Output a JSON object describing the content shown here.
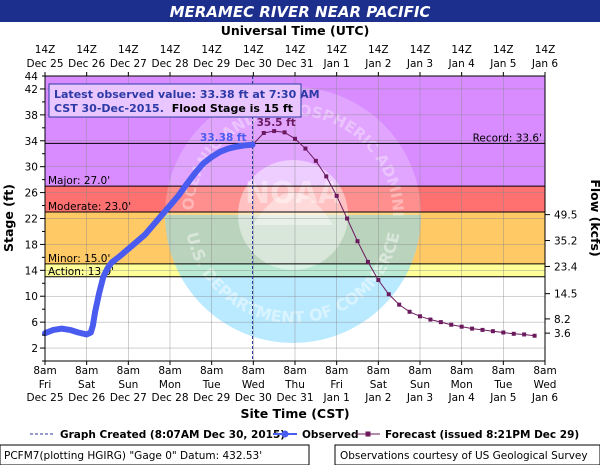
{
  "chart_data": {
    "type": "line",
    "title": "MERAMEC RIVER NEAR PACIFIC",
    "top_axis_title": "Universal Time (UTC)",
    "bottom_axis_title": "Site Time (CST)",
    "ylabel": "Stage (ft)",
    "y2label": "Flow (kcfs)",
    "ylim": [
      0,
      44
    ],
    "xlim_days": [
      "Dec 25",
      "Jan 6"
    ],
    "grid": true,
    "yticks": [
      2,
      6,
      10,
      14,
      18,
      22,
      26,
      30,
      34,
      38,
      42
    ],
    "yticks_minor": [
      0,
      4,
      8,
      12,
      16,
      20,
      24,
      28,
      32,
      36,
      40,
      44
    ],
    "flow_ticks": [
      {
        "stage": 4.3,
        "label": "3.6"
      },
      {
        "stage": 6.5,
        "label": "8.2"
      },
      {
        "stage": 10.4,
        "label": "14.5"
      },
      {
        "stage": 14.6,
        "label": "23.4"
      },
      {
        "stage": 18.6,
        "label": "35.2"
      },
      {
        "stage": 22.6,
        "label": "49.5"
      }
    ],
    "top_ticks": [
      {
        "h": "14Z",
        "d": "Dec 25"
      },
      {
        "h": "14Z",
        "d": "Dec 26"
      },
      {
        "h": "14Z",
        "d": "Dec 27"
      },
      {
        "h": "14Z",
        "d": "Dec 28"
      },
      {
        "h": "14Z",
        "d": "Dec 29"
      },
      {
        "h": "14Z",
        "d": "Dec 30"
      },
      {
        "h": "14Z",
        "d": "Dec 31"
      },
      {
        "h": "14Z",
        "d": "Jan 1"
      },
      {
        "h": "14Z",
        "d": "Jan 2"
      },
      {
        "h": "14Z",
        "d": "Jan 3"
      },
      {
        "h": "14Z",
        "d": "Jan 4"
      },
      {
        "h": "14Z",
        "d": "Jan 5"
      },
      {
        "h": "14Z",
        "d": "Jan 6"
      }
    ],
    "bottom_ticks": [
      {
        "t": "8am",
        "w": "Fri",
        "d": "Dec 25"
      },
      {
        "t": "8am",
        "w": "Sat",
        "d": "Dec 26"
      },
      {
        "t": "8am",
        "w": "Sun",
        "d": "Dec 27"
      },
      {
        "t": "8am",
        "w": "Mon",
        "d": "Dec 28"
      },
      {
        "t": "8am",
        "w": "Tue",
        "d": "Dec 29"
      },
      {
        "t": "8am",
        "w": "Wed",
        "d": "Dec 30"
      },
      {
        "t": "8am",
        "w": "Thu",
        "d": "Dec 31"
      },
      {
        "t": "8am",
        "w": "Fri",
        "d": "Jan 1"
      },
      {
        "t": "8am",
        "w": "Sat",
        "d": "Jan 2"
      },
      {
        "t": "8am",
        "w": "Sun",
        "d": "Jan 3"
      },
      {
        "t": "8am",
        "w": "Mon",
        "d": "Jan 4"
      },
      {
        "t": "8am",
        "w": "Tue",
        "d": "Jan 5"
      },
      {
        "t": "8am",
        "w": "Wed",
        "d": "Jan 6"
      }
    ],
    "bands": [
      {
        "name": "Action",
        "from": 13.0,
        "to": 15.0,
        "color": "#ffff99"
      },
      {
        "name": "Minor",
        "from": 15.0,
        "to": 23.0,
        "color": "#ffc966"
      },
      {
        "name": "Moderate",
        "from": 23.0,
        "to": 27.0,
        "color": "#ff7070"
      },
      {
        "name": "Major",
        "from": 27.0,
        "to": 44.0,
        "color": "#d98cff"
      }
    ],
    "thresholds": [
      {
        "label": "Action: 13.0'",
        "value": 13.0
      },
      {
        "label": "Minor: 15.0'",
        "value": 15.0
      },
      {
        "label": "Moderate: 23.0'",
        "value": 23.0
      },
      {
        "label": "Major: 27.0'",
        "value": 27.0
      },
      {
        "label": "Record: 33.6'",
        "value": 33.6
      }
    ],
    "observed": {
      "name": "Observed",
      "color": "#4a5cf0",
      "x": [
        0,
        0.2,
        0.4,
        0.6,
        0.8,
        1.0,
        1.1,
        1.15,
        1.2,
        1.3,
        1.4,
        1.5,
        1.6,
        1.8,
        2.0,
        2.2,
        2.4,
        2.6,
        2.8,
        3.0,
        3.2,
        3.4,
        3.6,
        3.8,
        4.0,
        4.2,
        4.4,
        4.6,
        4.8,
        4.98
      ],
      "values": [
        4.3,
        4.8,
        5.0,
        4.8,
        4.4,
        4.1,
        4.4,
        5.5,
        7.5,
        10.5,
        13.0,
        14.3,
        15.2,
        16.2,
        17.3,
        18.4,
        19.5,
        21.0,
        22.5,
        24.0,
        25.5,
        27.3,
        29.0,
        30.5,
        31.5,
        32.3,
        32.8,
        33.1,
        33.3,
        33.38
      ]
    },
    "forecast": {
      "name": "Forecast",
      "color": "#6b1a5e",
      "x": [
        4.98,
        5.25,
        5.5,
        5.75,
        6.0,
        6.25,
        6.5,
        6.75,
        7.0,
        7.25,
        7.5,
        7.75,
        8.0,
        8.25,
        8.5,
        8.75,
        9.0,
        9.25,
        9.5,
        9.75,
        10.0,
        10.25,
        10.5,
        10.75,
        11.0,
        11.25,
        11.5,
        11.75
      ],
      "values": [
        33.38,
        35.2,
        35.5,
        35.3,
        34.3,
        32.8,
        30.9,
        28.5,
        25.5,
        22.0,
        18.5,
        15.3,
        12.5,
        10.3,
        8.7,
        7.6,
        6.9,
        6.4,
        6.0,
        5.6,
        5.3,
        5.0,
        4.8,
        4.6,
        4.4,
        4.2,
        4.1,
        3.9
      ]
    },
    "graph_created_x": 4.98,
    "observed_label": "33.38 ft",
    "peak_label": "35.5 ft",
    "info_box": {
      "line1": "Latest observed value: 33.38 ft at 7:30 AM",
      "line2a": "CST 30-Dec-2015.",
      "line2b": "Flood Stage is 15 ft"
    },
    "legend": {
      "graph_created": "Graph Created (8:07AM Dec 30, 2015)",
      "observed": "Observed",
      "forecast": "Forecast (issued 8:21PM Dec 29)"
    },
    "footer": {
      "left": "PCFM7(plotting HGIRG) \"Gage 0\" Datum: 432.53'",
      "right": "Observations courtesy of US Geological Survey"
    },
    "watermark_text": "NATIONAL OCEANIC AND ATMOSPHERIC ADMINISTRATION",
    "watermark_text_bottom": "U.S. DEPARTMENT OF COMMERCE",
    "watermark_center": "NOAA"
  }
}
